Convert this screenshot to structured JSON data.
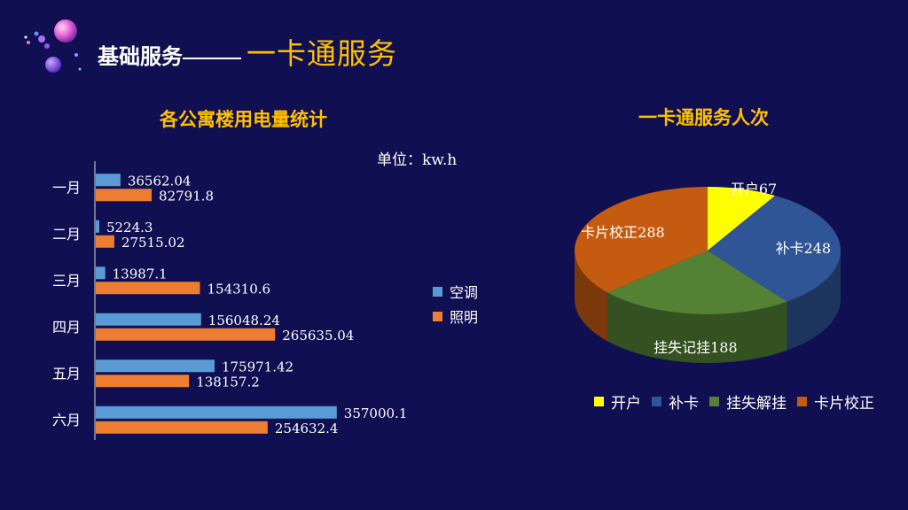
{
  "header": {
    "title_main": "基础服务",
    "title_sub": "一卡通服务"
  },
  "colors": {
    "background": "#0f0f52",
    "accent": "#ffc000",
    "aircon": "#5b9bd5",
    "lighting": "#ed7d31",
    "open": "#ffff00",
    "replace": "#2f5597",
    "loss": "#548235",
    "correct": "#c55a11"
  },
  "chart_data": [
    {
      "type": "bar",
      "orientation": "horizontal",
      "title": "各公寓楼用电量统计",
      "unit_label": "单位：kw.h",
      "categories": [
        "一月",
        "二月",
        "三月",
        "四月",
        "五月",
        "六月"
      ],
      "series": [
        {
          "name": "空调",
          "values": [
            36562.04,
            5224.3,
            13987.1,
            156048.24,
            175971.42,
            357000.1
          ],
          "labels": [
            "36562.04",
            "5224.3",
            "13987.1",
            "156048.24",
            "175971.42",
            "357000.1"
          ]
        },
        {
          "name": "照明",
          "values": [
            82791.8,
            27515.02,
            154310.6,
            265635.04,
            138157.2,
            254632.4
          ],
          "labels": [
            "82791.8",
            "27515.02",
            "154310.6",
            "265635.04",
            "138157.2",
            "254632.4"
          ]
        }
      ],
      "xlim": [
        0,
        440000
      ],
      "grid": false,
      "legend_position": "right"
    },
    {
      "type": "pie",
      "style": "3d",
      "title": "一卡通服务人次",
      "slices": [
        {
          "name": "开户",
          "value": 67,
          "label": "开户67"
        },
        {
          "name": "补卡",
          "value": 248,
          "label": "补卡248"
        },
        {
          "name": "挂失解挂",
          "value": 188,
          "label": "挂失记挂188"
        },
        {
          "name": "卡片校正",
          "value": 288,
          "label": "卡片校正288"
        }
      ],
      "legend_position": "bottom"
    }
  ]
}
